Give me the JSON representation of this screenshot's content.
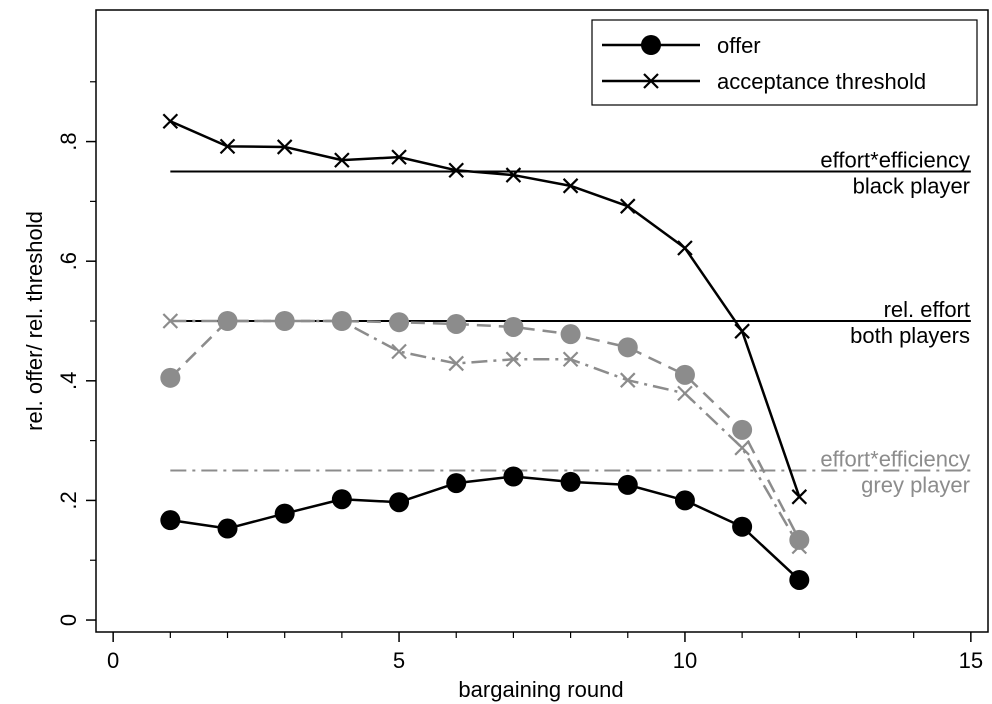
{
  "chart_data": {
    "type": "line",
    "xlabel": "bargaining round",
    "ylabel": "rel. offer/ rel. threshold",
    "xlim": [
      -0.3,
      15.3
    ],
    "ylim": [
      -0.02,
      1.02
    ],
    "xticks": [
      0,
      5,
      10,
      15
    ],
    "xtick_labels": [
      "0",
      "5",
      "10",
      "15"
    ],
    "xticks_minor": [
      1,
      2,
      3,
      4,
      6,
      7,
      8,
      9,
      11,
      12,
      13,
      14
    ],
    "yticks": [
      0,
      0.2,
      0.4,
      0.6,
      0.8
    ],
    "ytick_labels": [
      "0",
      ".2",
      ".4",
      ".6",
      ".8"
    ],
    "yticks_minor": [
      0.1,
      0.3,
      0.5,
      0.7,
      0.9
    ],
    "grid": false,
    "legend_position": "top-right",
    "legend": [
      {
        "label": "offer",
        "marker": "circle",
        "color": "#000000"
      },
      {
        "label": "acceptance threshold",
        "marker": "x",
        "color": "#000000"
      }
    ],
    "x": [
      1,
      2,
      3,
      4,
      5,
      6,
      7,
      8,
      9,
      10,
      11,
      12
    ],
    "series": [
      {
        "name": "offer",
        "player": "black",
        "marker": "circle",
        "color": "#000000",
        "dash": "solid",
        "values": [
          0.167,
          0.153,
          0.178,
          0.202,
          0.197,
          0.229,
          0.24,
          0.231,
          0.226,
          0.2,
          0.156,
          0.067
        ]
      },
      {
        "name": "acceptance threshold",
        "player": "black",
        "marker": "x",
        "color": "#000000",
        "dash": "solid",
        "values": [
          0.834,
          0.792,
          0.791,
          0.769,
          0.774,
          0.752,
          0.744,
          0.726,
          0.692,
          0.622,
          0.483,
          0.206
        ]
      },
      {
        "name": "offer",
        "player": "grey",
        "marker": "circle",
        "color": "#8c8c8c",
        "dash": "dash",
        "values": [
          0.405,
          0.5,
          0.5,
          0.5,
          0.498,
          0.495,
          0.49,
          0.478,
          0.456,
          0.41,
          0.318,
          0.134
        ]
      },
      {
        "name": "acceptance threshold",
        "player": "grey",
        "marker": "x",
        "color": "#8c8c8c",
        "dash": "dashdot",
        "values": [
          0.5,
          0.5,
          0.5,
          0.5,
          0.449,
          0.429,
          0.436,
          0.436,
          0.401,
          0.379,
          0.288,
          0.123
        ]
      }
    ],
    "reference_lines": [
      {
        "y": 0.75,
        "x_start": 1,
        "x_end": 15,
        "color": "#000000",
        "dash": "solid",
        "label_lines": [
          "effort*efficiency",
          "black player"
        ]
      },
      {
        "y": 0.5,
        "x_start": 1,
        "x_end": 15,
        "color": "#000000",
        "dash": "solid",
        "label_lines": [
          "rel. effort",
          "both players"
        ]
      },
      {
        "y": 0.25,
        "x_start": 1,
        "x_end": 15,
        "color": "#8c8c8c",
        "dash": "dashdot",
        "label_lines": [
          "effort*efficiency",
          "grey player"
        ]
      }
    ]
  }
}
